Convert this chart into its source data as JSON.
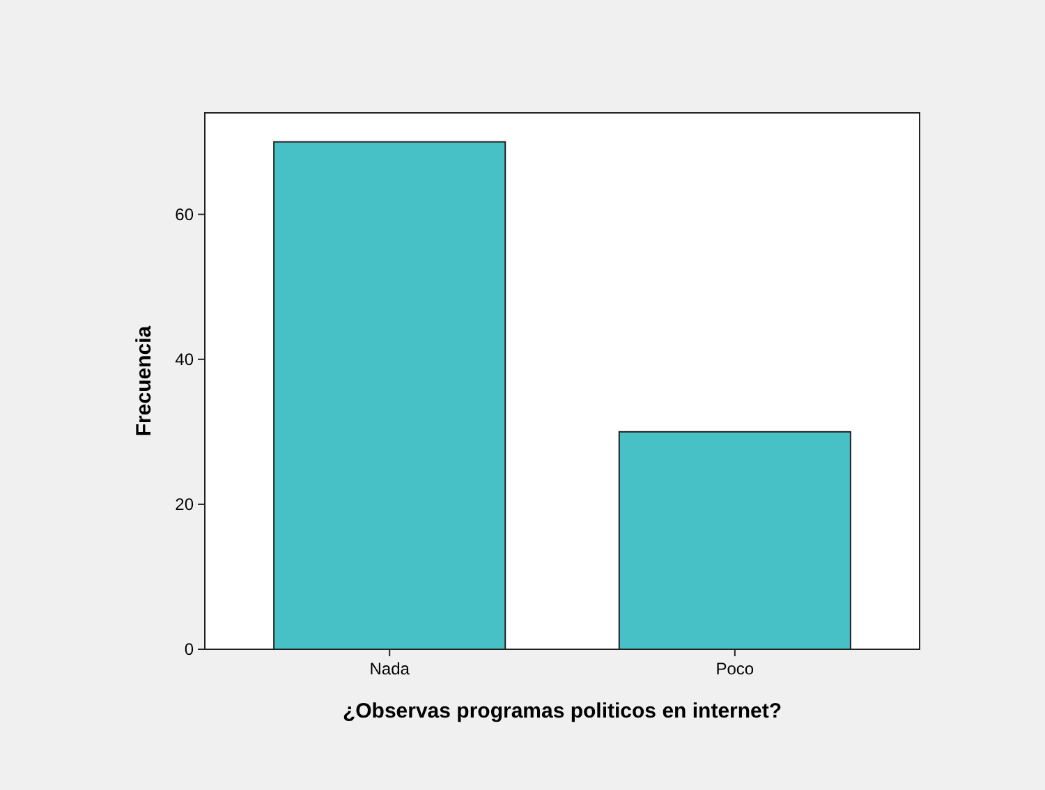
{
  "chart_data": {
    "type": "bar",
    "xlabel": "¿Observas programas politicos en internet?",
    "ylabel": "Frecuencia",
    "categories": [
      "Nada",
      "Poco"
    ],
    "values": [
      70,
      30
    ],
    "color": "#48c1c6",
    "ylim": [
      0,
      74
    ],
    "yticks": [
      0,
      20,
      40,
      60
    ],
    "grid": false
  }
}
